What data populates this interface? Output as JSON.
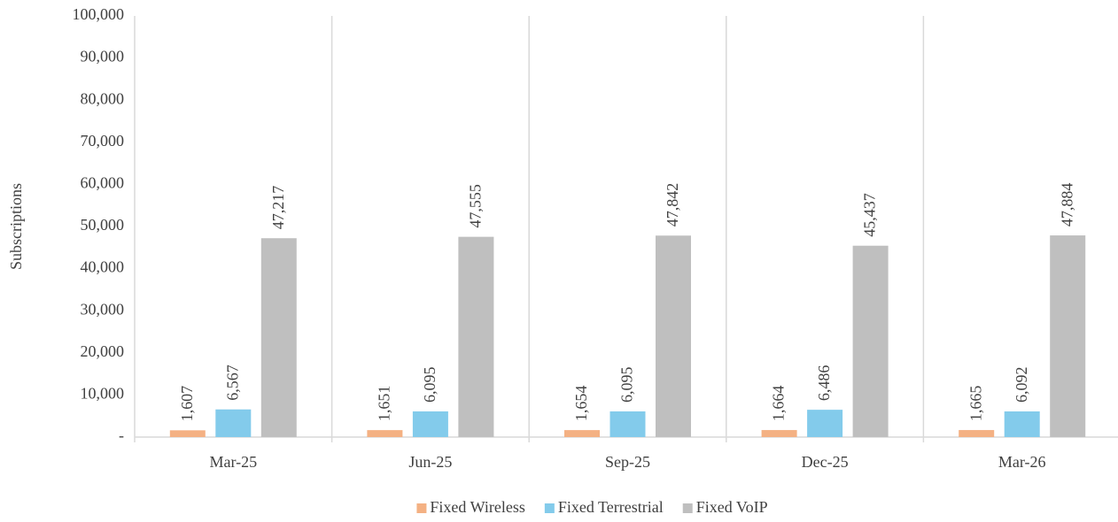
{
  "chart_data": {
    "type": "bar",
    "y_label": "Subscriptions",
    "categories": [
      "Mar-25",
      "Jun-25",
      "Sep-25",
      "Dec-25",
      "Mar-26"
    ],
    "series": [
      {
        "name": "Fixed Wireless",
        "color": "#f4b183",
        "values": [
          1607,
          1651,
          1654,
          1664,
          1665
        ],
        "value_labels": [
          "1,607",
          "1,651",
          "1,654",
          "1,664",
          "1,665"
        ]
      },
      {
        "name": "Fixed Terrestrial",
        "color": "#83cbeb",
        "values": [
          6567,
          6095,
          6095,
          6486,
          6092
        ],
        "value_labels": [
          "6,567",
          "6,095",
          "6,095",
          "6,486",
          "6,092"
        ]
      },
      {
        "name": "Fixed VoIP",
        "color": "#bfbfbf",
        "values": [
          47217,
          47555,
          47842,
          45437,
          47884
        ],
        "value_labels": [
          "47,217",
          "47,555",
          "47,842",
          "45,437",
          "47,884"
        ]
      }
    ],
    "ylim": [
      0,
      100000
    ],
    "yticks": [
      {
        "value": 0,
        "label": "-"
      },
      {
        "value": 10000,
        "label": "10,000"
      },
      {
        "value": 20000,
        "label": "20,000"
      },
      {
        "value": 30000,
        "label": "30,000"
      },
      {
        "value": 40000,
        "label": "40,000"
      },
      {
        "value": 50000,
        "label": "50,000"
      },
      {
        "value": 60000,
        "label": "60,000"
      },
      {
        "value": 70000,
        "label": "70,000"
      },
      {
        "value": 80000,
        "label": "80,000"
      },
      {
        "value": 90000,
        "label": "90,000"
      },
      {
        "value": 100000,
        "label": "100,000"
      }
    ],
    "legend": "bottom"
  }
}
